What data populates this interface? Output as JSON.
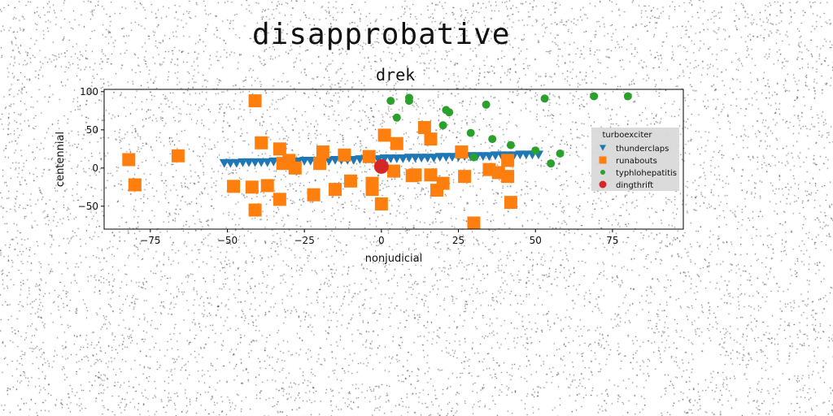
{
  "page_title": "disapprobative",
  "chart_data": {
    "type": "scatter",
    "title": "drek",
    "xlabel": "nonjudicial",
    "ylabel": "centennial",
    "xlim": [
      -90,
      98
    ],
    "ylim": [
      -80,
      103
    ],
    "xticks": [
      -75,
      -50,
      -25,
      0,
      25,
      50,
      75
    ],
    "yticks": [
      -50,
      0,
      50,
      100
    ],
    "xtick_labels": [
      "−75",
      "−50",
      "−25",
      "0",
      "25",
      "50",
      "75"
    ],
    "ytick_labels": [
      "−50",
      "0",
      "50",
      "100"
    ],
    "grid": false,
    "legend": {
      "title": "turboexciter",
      "placement": "right"
    },
    "series": [
      {
        "name": "thunderclaps",
        "marker": "triangle-down",
        "color": "#1f77b4",
        "x": [
          -51,
          -49,
          -47,
          -45,
          -43,
          -41,
          -39,
          -37,
          -35,
          -33,
          -31,
          -29,
          -27,
          -25,
          -23,
          -21,
          -19,
          -17,
          -15,
          -13,
          -11,
          -9,
          -7,
          -5,
          -3,
          -1,
          1,
          3,
          5,
          7,
          9,
          11,
          13,
          15,
          17,
          19,
          21,
          23,
          25,
          27,
          29,
          31,
          33,
          35,
          37,
          39,
          41,
          43,
          45,
          47,
          49,
          51
        ],
        "y": [
          6,
          6,
          6,
          7,
          7,
          7,
          7,
          7,
          8,
          8,
          8,
          8,
          8,
          9,
          9,
          9,
          9,
          9,
          10,
          10,
          10,
          10,
          11,
          11,
          11,
          11,
          12,
          12,
          12,
          12,
          13,
          13,
          13,
          13,
          13,
          14,
          14,
          14,
          14,
          15,
          15,
          15,
          15,
          15,
          16,
          16,
          16,
          16,
          17,
          17,
          17,
          17
        ]
      },
      {
        "name": "runabouts",
        "marker": "square",
        "color": "#ff7f0e",
        "x": [
          -41,
          -82,
          -80,
          -66,
          -39,
          -48,
          -42,
          -41,
          -37,
          -33,
          -32,
          -30,
          -28,
          -33,
          -22,
          -19,
          -20,
          -15,
          -12,
          -10,
          -4,
          -3,
          -3,
          0,
          1,
          5,
          4,
          10,
          11,
          14,
          16,
          16,
          18,
          20,
          26,
          27,
          30,
          35,
          38,
          41,
          41,
          42
        ],
        "y": [
          88,
          11,
          -22,
          16,
          33,
          -24,
          -25,
          -55,
          -23,
          25,
          6,
          10,
          0,
          -41,
          -35,
          21,
          6,
          -28,
          17,
          -17,
          15,
          -20,
          -28,
          -47,
          43,
          32,
          -4,
          -10,
          -9,
          53,
          38,
          -9,
          -29,
          -20,
          21,
          -11,
          -72,
          -2,
          -6,
          10,
          -11,
          -45
        ]
      },
      {
        "name": "typhlohepatitis",
        "marker": "circle",
        "color": "#2ca02c",
        "x": [
          3,
          9,
          9,
          5,
          21,
          22,
          34,
          20,
          29,
          36,
          30,
          42,
          53,
          69,
          80,
          50,
          58,
          55
        ],
        "y": [
          88,
          92,
          88,
          66,
          76,
          73,
          83,
          56,
          46,
          38,
          14,
          30,
          91,
          94,
          94,
          23,
          19,
          6
        ]
      },
      {
        "name": "dingthrift",
        "marker": "circle",
        "color": "#d62728",
        "size": "large",
        "x": [
          0
        ],
        "y": [
          2
        ]
      }
    ]
  }
}
